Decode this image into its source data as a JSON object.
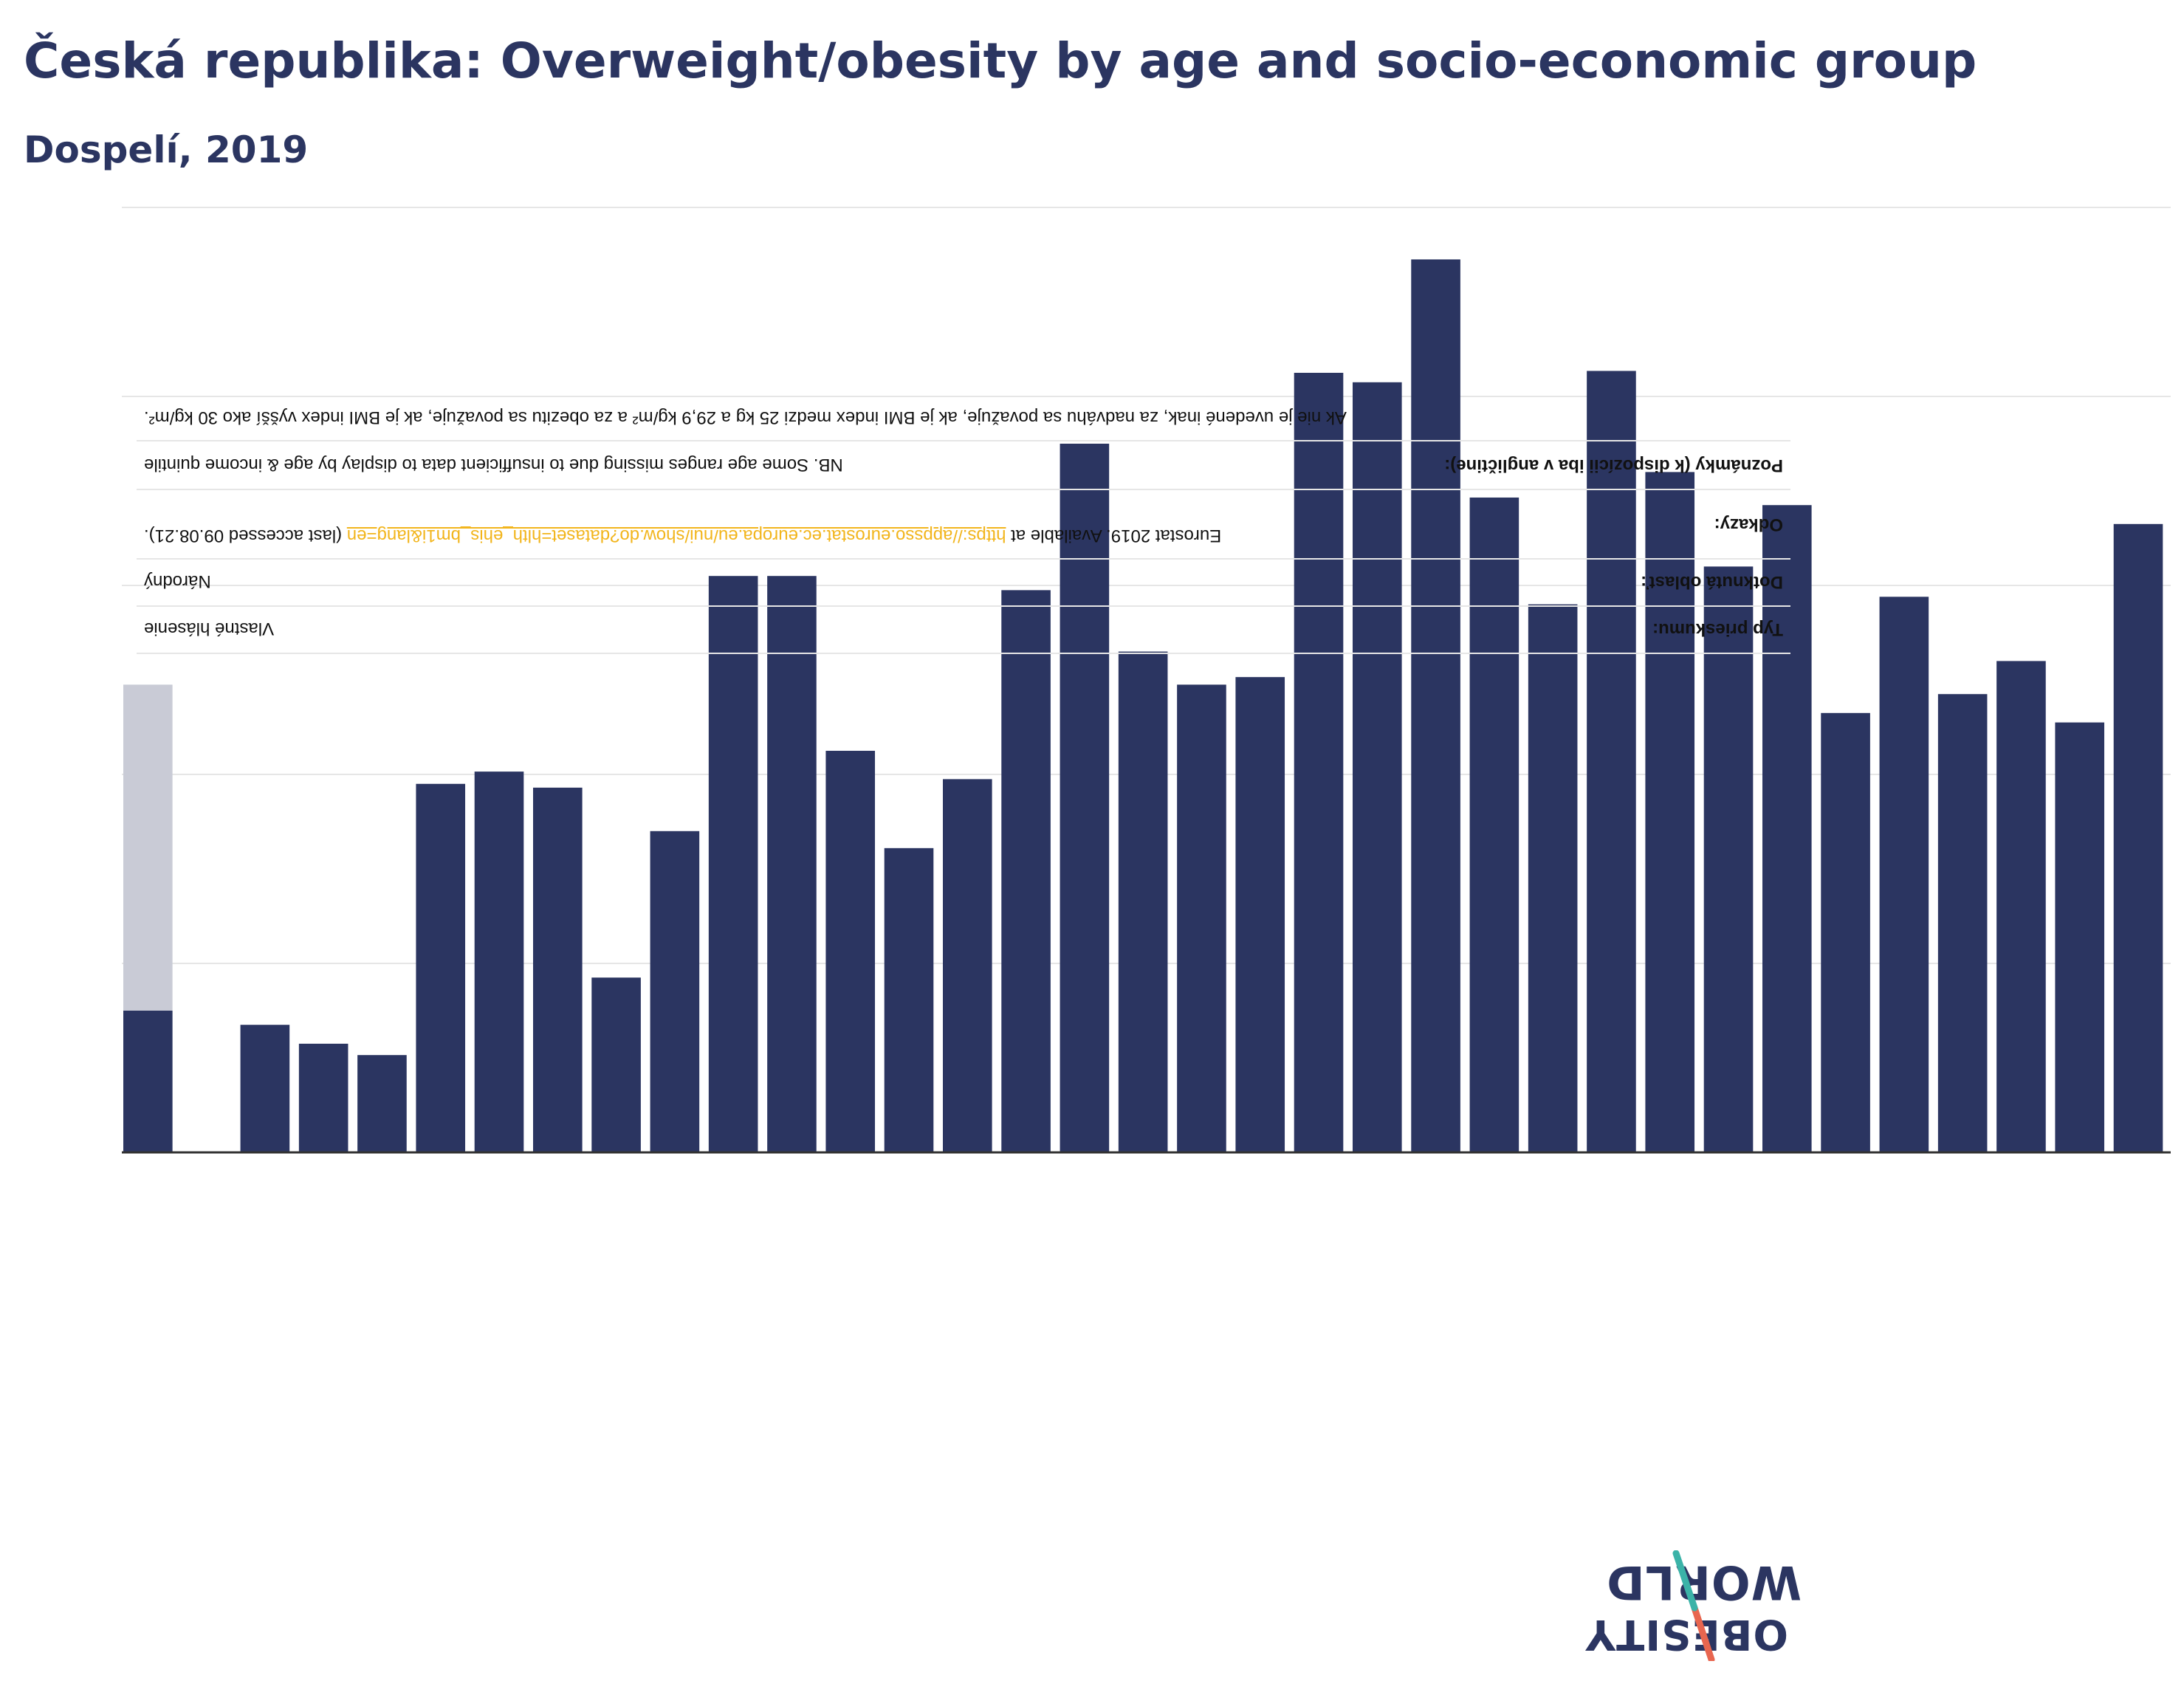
{
  "header": {
    "title": "Česká republika: Overweight/obesity by age and socio-economic group",
    "subtitle": "Dospelí, 2019"
  },
  "info_table": {
    "survey_type_label": "Typ prieskumu:",
    "survey_type_value": "Vlastné hlásenie",
    "area_label": "Dotknutá oblasť:",
    "area_value": "Národný",
    "references_label": "Odkazy:",
    "references_prefix": "Eurostat 2019. Available at ",
    "references_link": "https://appsso.eurostat.ec.europa.eu/nui/show.do?dataset=hlth_ehis_bm1i&lang=en",
    "references_suffix": " (last accessed 09.08.21).",
    "notes_label": "Poznámky (k dispozícii iba v angličtine):",
    "notes_value": "NB. Some age ranges missing due to insufficient data to display by age & income quintile",
    "definition_value": "Ak nie je uvedené inak, za nadváhu sa považuje, ak je BMI index medzi 25 kg a 29,9 kg/m² a za obezitu sa považuje, ak je BMI index vyšší ako 30 kg/m²."
  },
  "logo": {
    "line1": "OBESITY",
    "line2": "WORLD"
  },
  "colors": {
    "bar": "#2b3561",
    "bar_overlay": "#c9cbd6",
    "gridline": "#e6e6e6",
    "axis": "#333333",
    "title": "#2b3561",
    "link": "#f2b51c",
    "logo_accent_red": "#e8664f",
    "logo_accent_teal": "#3bb3a8"
  },
  "chart_data": {
    "type": "bar",
    "ylim": [
      0,
      100
    ],
    "grid": true,
    "values": [
      15,
      null,
      13.5,
      11.5,
      10.3,
      39,
      40.3,
      38.6,
      18.5,
      34,
      61,
      61,
      42.5,
      32.2,
      39.5,
      59.5,
      75,
      53,
      49.5,
      50.3,
      82.5,
      81.5,
      94.5,
      69.3,
      58,
      82.7,
      72,
      62,
      68.5,
      46.5,
      58.8,
      48.5,
      52,
      45.5,
      66.5
    ],
    "overlay": [
      {
        "index": 0,
        "value": 49.5
      }
    ]
  }
}
